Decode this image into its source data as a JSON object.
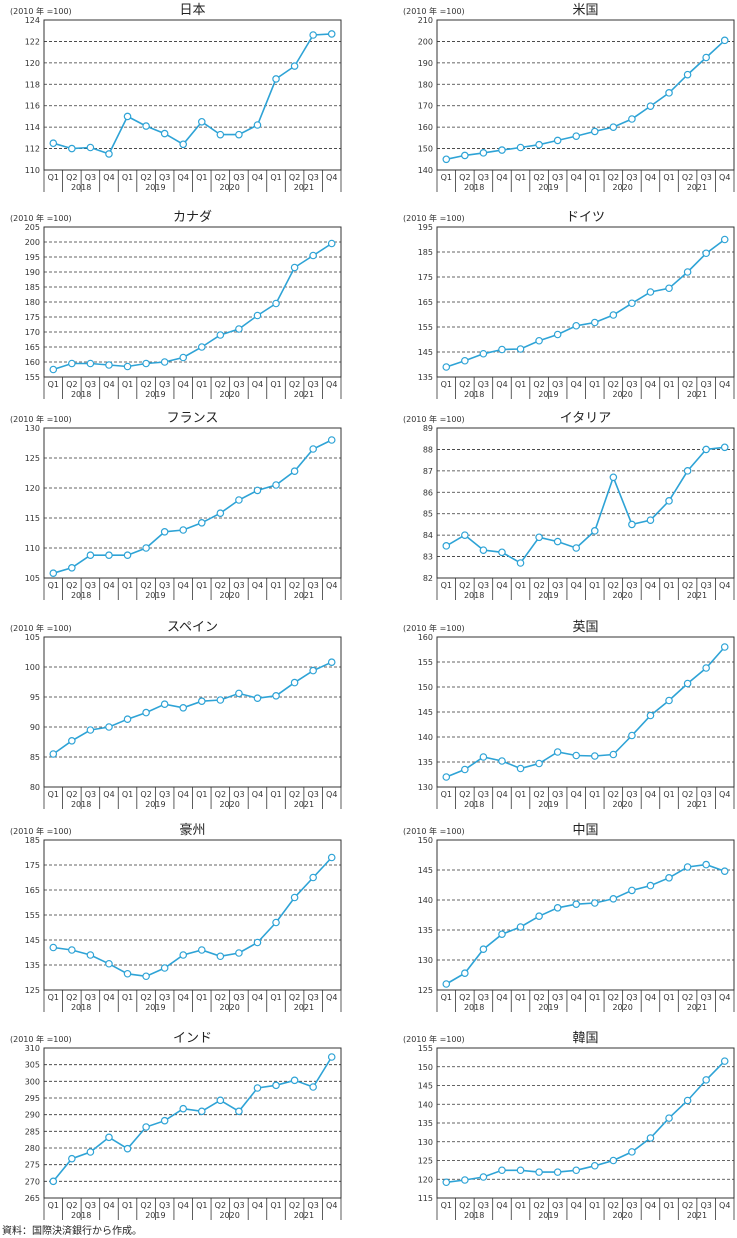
{
  "unit_label": "(2010 年 =100)",
  "quarters": [
    "Q1",
    "Q2",
    "Q3",
    "Q4"
  ],
  "years": [
    "2018",
    "2019",
    "2020",
    "2021"
  ],
  "source": "資料：国際決済銀行から作成。",
  "colors": {
    "line": "#2ea3d6",
    "grid": "#333333"
  },
  "chart_data": [
    {
      "type": "line",
      "title": "日本",
      "ylim": [
        110,
        124
      ],
      "yticks": [
        110,
        112,
        114,
        116,
        118,
        120,
        122,
        124
      ],
      "values": [
        112.5,
        112.0,
        112.1,
        111.5,
        115.0,
        114.1,
        113.4,
        112.4,
        114.5,
        113.3,
        113.3,
        114.2,
        118.5,
        119.7,
        122.6,
        122.7
      ]
    },
    {
      "type": "line",
      "title": "米国",
      "ylim": [
        140,
        210
      ],
      "yticks": [
        140,
        150,
        160,
        170,
        180,
        190,
        200,
        210
      ],
      "values": [
        145.0,
        146.8,
        148.0,
        149.3,
        150.5,
        151.8,
        153.8,
        155.8,
        158.0,
        160.0,
        163.8,
        169.8,
        176.0,
        184.5,
        192.5,
        200.5
      ]
    },
    {
      "type": "line",
      "title": "カナダ",
      "ylim": [
        155,
        205
      ],
      "yticks": [
        155,
        160,
        165,
        170,
        175,
        180,
        185,
        190,
        195,
        200,
        205
      ],
      "values": [
        157.5,
        159.5,
        159.5,
        159.0,
        158.5,
        159.5,
        160.0,
        161.5,
        165.0,
        169.0,
        171.0,
        175.5,
        179.5,
        191.5,
        195.5,
        199.5
      ]
    },
    {
      "type": "line",
      "title": "ドイツ",
      "ylim": [
        135,
        195
      ],
      "yticks": [
        135,
        145,
        155,
        165,
        175,
        185,
        195
      ],
      "values": [
        139.0,
        141.5,
        144.3,
        146.0,
        146.2,
        149.5,
        152.0,
        155.5,
        156.8,
        159.8,
        164.5,
        169.0,
        170.5,
        177.0,
        184.5,
        190.0
      ]
    },
    {
      "type": "line",
      "title": "フランス",
      "ylim": [
        105,
        130
      ],
      "yticks": [
        105,
        110,
        115,
        120,
        125,
        130
      ],
      "values": [
        105.8,
        106.7,
        108.8,
        108.8,
        108.8,
        110.0,
        112.7,
        113.0,
        114.2,
        115.8,
        118.0,
        119.6,
        120.5,
        122.8,
        126.5,
        128.0
      ]
    },
    {
      "type": "line",
      "title": "イタリア",
      "ylim": [
        82,
        89
      ],
      "yticks": [
        82,
        83,
        84,
        85,
        86,
        87,
        88,
        89
      ],
      "values": [
        83.5,
        84.0,
        83.3,
        83.2,
        82.7,
        83.9,
        83.7,
        83.4,
        84.2,
        86.7,
        84.5,
        84.7,
        85.6,
        87.0,
        88.0,
        88.1
      ]
    },
    {
      "type": "line",
      "title": "スペイン",
      "ylim": [
        80,
        105
      ],
      "yticks": [
        80,
        85,
        90,
        95,
        100,
        105
      ],
      "values": [
        85.5,
        87.7,
        89.5,
        90.0,
        91.3,
        92.4,
        93.8,
        93.2,
        94.3,
        94.5,
        95.6,
        94.8,
        95.2,
        97.4,
        99.4,
        100.8
      ]
    },
    {
      "type": "line",
      "title": "英国",
      "ylim": [
        130,
        160
      ],
      "yticks": [
        130,
        135,
        140,
        145,
        150,
        155,
        160
      ],
      "values": [
        132.0,
        133.5,
        136.0,
        135.2,
        133.7,
        134.7,
        137.0,
        136.3,
        136.2,
        136.5,
        140.3,
        144.3,
        147.3,
        150.7,
        153.8,
        158.0
      ]
    },
    {
      "type": "line",
      "title": "豪州",
      "ylim": [
        125,
        185
      ],
      "yticks": [
        125,
        135,
        145,
        155,
        165,
        175,
        185
      ],
      "values": [
        142.0,
        141.0,
        139.0,
        135.5,
        131.5,
        130.5,
        133.8,
        139.0,
        141.0,
        138.5,
        139.8,
        144.0,
        152.0,
        162.0,
        170.0,
        178.0
      ]
    },
    {
      "type": "line",
      "title": "中国",
      "ylim": [
        125,
        150
      ],
      "yticks": [
        125,
        130,
        135,
        140,
        145,
        150
      ],
      "values": [
        126.0,
        127.8,
        131.8,
        134.3,
        135.5,
        137.3,
        138.7,
        139.3,
        139.5,
        140.2,
        141.6,
        142.4,
        143.7,
        145.5,
        145.9,
        144.8
      ]
    },
    {
      "type": "line",
      "title": "インド",
      "ylim": [
        265,
        310
      ],
      "yticks": [
        265,
        270,
        275,
        280,
        285,
        290,
        295,
        300,
        305,
        310
      ],
      "values": [
        270.0,
        276.8,
        278.8,
        283.2,
        279.8,
        286.3,
        288.2,
        291.8,
        291.0,
        294.3,
        291.0,
        298.0,
        298.8,
        300.3,
        298.3,
        307.3
      ]
    },
    {
      "type": "line",
      "title": "韓国",
      "ylim": [
        115,
        155
      ],
      "yticks": [
        115,
        120,
        125,
        130,
        135,
        140,
        145,
        150,
        155
      ],
      "values": [
        119.2,
        119.8,
        120.6,
        122.4,
        122.4,
        121.9,
        121.9,
        122.4,
        123.6,
        125.0,
        127.3,
        131.0,
        136.3,
        141.0,
        146.5,
        151.5
      ]
    }
  ]
}
